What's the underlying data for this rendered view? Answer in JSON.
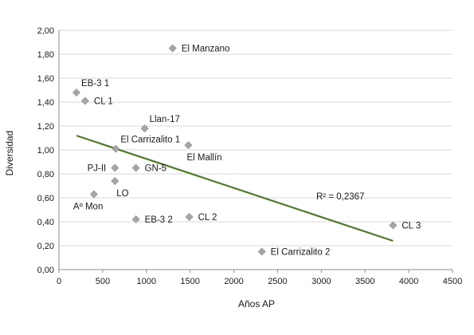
{
  "chart_data": {
    "type": "scatter",
    "xlabel": "Años AP",
    "ylabel": "Diversidad",
    "xlim": [
      0,
      4500
    ],
    "ylim": [
      0,
      2
    ],
    "x_ticks": [
      0,
      500,
      1000,
      1500,
      2000,
      2500,
      3000,
      3500,
      4000,
      4500
    ],
    "x_tick_labels": [
      "0",
      "500",
      "1000",
      "1500",
      "2000",
      "2500",
      "3000",
      "3500",
      "4000",
      "4500"
    ],
    "y_ticks": [
      0,
      0.2,
      0.4,
      0.6,
      0.8,
      1.0,
      1.2,
      1.4,
      1.6,
      1.8,
      2.0
    ],
    "y_tick_labels": [
      "0,00",
      "0,20",
      "0,40",
      "0,60",
      "0,80",
      "1,00",
      "1,20",
      "1,40",
      "1,60",
      "1,80",
      "2,00"
    ],
    "grid": "horizontal",
    "points": [
      {
        "label": "El Manzano",
        "x": 1300,
        "y": 1.85,
        "label_side": "right"
      },
      {
        "label": "EB-3 1",
        "x": 200,
        "y": 1.48,
        "label_side": "above-right"
      },
      {
        "label": "CL 1",
        "x": 300,
        "y": 1.41,
        "label_side": "right"
      },
      {
        "label": "Llan-17",
        "x": 980,
        "y": 1.18,
        "label_side": "above-right"
      },
      {
        "label": "El Carrizalito 1",
        "x": 650,
        "y": 1.01,
        "label_side": "above-right"
      },
      {
        "label": "El Mallín",
        "x": 1480,
        "y": 1.04,
        "label_side": "below"
      },
      {
        "label": "PJ-II",
        "x": 640,
        "y": 0.85,
        "label_side": "left"
      },
      {
        "label": "GN-5",
        "x": 880,
        "y": 0.85,
        "label_side": "right"
      },
      {
        "label": "LO",
        "x": 640,
        "y": 0.74,
        "label_side": "below-right"
      },
      {
        "label": "Aº Mon",
        "x": 400,
        "y": 0.63,
        "label_side": "below"
      },
      {
        "label": "EB-3 2",
        "x": 880,
        "y": 0.42,
        "label_side": "right"
      },
      {
        "label": "CL 2",
        "x": 1490,
        "y": 0.44,
        "label_side": "right"
      },
      {
        "label": "CL 3",
        "x": 3820,
        "y": 0.37,
        "label_side": "right"
      },
      {
        "label": "El Carrizalito 2",
        "x": 2320,
        "y": 0.15,
        "label_side": "right"
      }
    ],
    "trendline": {
      "x": [
        200,
        3820
      ],
      "y": [
        1.12,
        0.24
      ],
      "color": "#4f7a28"
    },
    "annotation": "R² = 0,2367",
    "marker_color": "#a6a6a6"
  }
}
